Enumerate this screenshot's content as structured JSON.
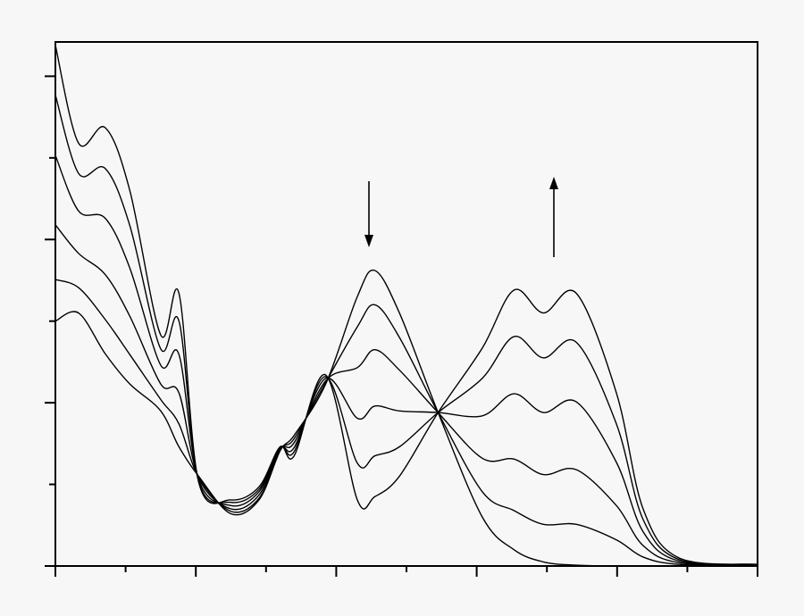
{
  "chart_data": {
    "type": "line",
    "x": [
      0,
      0.33,
      0.71,
      1.06,
      1.5,
      1.76,
      2.04,
      2.5,
      2.9,
      3.2,
      3.4,
      3.85,
      4.3,
      4.55,
      4.9,
      5.45,
      6.08,
      6.53,
      6.95,
      7.42,
      7.99,
      8.37,
      8.88,
      10
    ],
    "series": [
      {
        "color": "#000000",
        "values": [
          3.0,
          3.1,
          2.6,
          2.23,
          1.9,
          1.46,
          1.1,
          0.64,
          0.81,
          1.41,
          1.6,
          2.23,
          3.3,
          3.62,
          3.1,
          1.88,
          0.6,
          0.2,
          0.05,
          0.01,
          0,
          0,
          0,
          0
        ]
      },
      {
        "color": "#000000",
        "values": [
          3.51,
          3.41,
          3.02,
          2.59,
          2.04,
          1.74,
          1.09,
          0.67,
          0.83,
          1.42,
          1.56,
          2.25,
          2.93,
          3.2,
          2.8,
          1.88,
          0.91,
          0.68,
          0.51,
          0.51,
          0.32,
          0.11,
          0.02,
          0
        ]
      },
      {
        "color": "#000000",
        "values": [
          4.18,
          3.83,
          3.57,
          3.06,
          2.23,
          2.12,
          1.08,
          0.7,
          0.87,
          1.43,
          1.51,
          2.27,
          2.43,
          2.65,
          2.4,
          1.88,
          1.32,
          1.31,
          1.12,
          1.18,
          0.74,
          0.25,
          0.04,
          0.01
        ]
      },
      {
        "color": "#000000",
        "values": [
          5.03,
          4.35,
          4.26,
          3.65,
          2.46,
          2.59,
          1.06,
          0.74,
          0.91,
          1.44,
          1.45,
          2.3,
          1.81,
          1.96,
          1.9,
          1.88,
          1.84,
          2.11,
          1.88,
          2.01,
          1.27,
          0.42,
          0.06,
          0.01
        ]
      },
      {
        "color": "#000000",
        "values": [
          5.77,
          4.81,
          4.87,
          4.17,
          2.66,
          3.0,
          1.04,
          0.78,
          0.94,
          1.45,
          1.4,
          2.32,
          1.26,
          1.35,
          1.46,
          1.88,
          2.3,
          2.81,
          2.55,
          2.74,
          1.74,
          0.57,
          0.08,
          0.02
        ]
      },
      {
        "color": "#000000",
        "values": [
          6.38,
          5.18,
          5.37,
          4.6,
          2.83,
          3.34,
          1.03,
          0.81,
          0.97,
          1.46,
          1.35,
          2.34,
          0.81,
          0.85,
          1.1,
          1.88,
          2.67,
          3.38,
          3.1,
          3.34,
          2.12,
          0.7,
          0.1,
          0.02
        ]
      }
    ],
    "xlim": [
      0,
      10
    ],
    "ylim": [
      0,
      6.42
    ],
    "xticks": [
      0,
      1,
      2,
      3,
      4,
      5,
      6,
      7,
      8,
      9,
      10
    ],
    "yticks": [
      0,
      1,
      2,
      3,
      4,
      5,
      6
    ]
  }
}
